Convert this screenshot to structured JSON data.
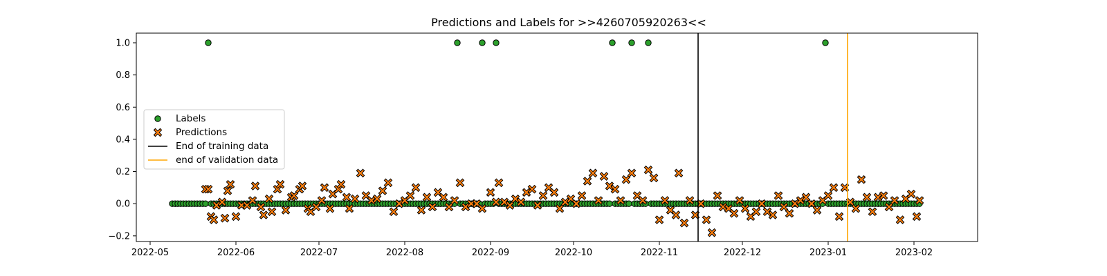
{
  "chart_data": {
    "type": "scatter",
    "title": "Predictions and Labels for >>4260705920263<<",
    "xlabel": "",
    "ylabel": "",
    "x_axis": {
      "type": "date",
      "range": [
        "2022-04-26",
        "2023-02-24"
      ],
      "ticks": [
        "2022-05-01",
        "2022-06-01",
        "2022-07-01",
        "2022-08-01",
        "2022-09-01",
        "2022-10-01",
        "2022-11-01",
        "2022-12-01",
        "2023-01-01",
        "2023-02-01"
      ],
      "tick_labels": [
        "2022-05",
        "2022-06",
        "2022-07",
        "2022-08",
        "2022-09",
        "2022-10",
        "2022-11",
        "2022-12",
        "2023-01",
        "2023-02"
      ]
    },
    "y_axis": {
      "range": [
        -0.235,
        1.06
      ],
      "ticks": [
        -0.2,
        0.0,
        0.2,
        0.4,
        0.6,
        0.8,
        1.0
      ],
      "tick_labels": [
        "−0.2",
        "0.0",
        "0.2",
        "0.4",
        "0.6",
        "0.8",
        "1.0"
      ]
    },
    "grid": false,
    "legend_position": "center-left",
    "labels_series": {
      "name": "Labels",
      "color": "#2ca02c",
      "x_range": [
        "2022-05-09",
        "2023-02-03"
      ],
      "default_value": 0.0,
      "positive_dates": [
        "2022-05-22",
        "2022-08-20",
        "2022-08-29",
        "2022-09-03",
        "2022-10-15",
        "2022-10-22",
        "2022-10-28",
        "2022-12-31"
      ],
      "positive_value": 1.0
    },
    "predictions_series": {
      "name": "Predictions",
      "color": "#ff7f0e",
      "points": [
        [
          "2022-05-21",
          0.09
        ],
        [
          "2022-05-22",
          0.09
        ],
        [
          "2022-05-23",
          -0.08
        ],
        [
          "2022-05-24",
          -0.1
        ],
        [
          "2022-05-25",
          -0.01
        ],
        [
          "2022-05-27",
          0.01
        ],
        [
          "2022-05-28",
          -0.09
        ],
        [
          "2022-05-29",
          0.08
        ],
        [
          "2022-05-30",
          0.12
        ],
        [
          "2022-06-01",
          -0.08
        ],
        [
          "2022-06-03",
          -0.01
        ],
        [
          "2022-06-05",
          -0.01
        ],
        [
          "2022-06-07",
          0.02
        ],
        [
          "2022-06-08",
          0.11
        ],
        [
          "2022-06-10",
          -0.02
        ],
        [
          "2022-06-11",
          -0.07
        ],
        [
          "2022-06-13",
          0.03
        ],
        [
          "2022-06-14",
          -0.05
        ],
        [
          "2022-06-16",
          0.09
        ],
        [
          "2022-06-17",
          0.12
        ],
        [
          "2022-06-19",
          -0.04
        ],
        [
          "2022-06-21",
          0.04
        ],
        [
          "2022-06-22",
          0.05
        ],
        [
          "2022-06-24",
          0.09
        ],
        [
          "2022-06-25",
          0.11
        ],
        [
          "2022-06-27",
          -0.03
        ],
        [
          "2022-06-28",
          -0.05
        ],
        [
          "2022-06-30",
          -0.02
        ],
        [
          "2022-07-02",
          0.02
        ],
        [
          "2022-07-03",
          0.1
        ],
        [
          "2022-07-05",
          -0.03
        ],
        [
          "2022-07-06",
          0.06
        ],
        [
          "2022-07-08",
          0.09
        ],
        [
          "2022-07-09",
          0.12
        ],
        [
          "2022-07-11",
          0.04
        ],
        [
          "2022-07-12",
          -0.03
        ],
        [
          "2022-07-14",
          0.03
        ],
        [
          "2022-07-16",
          0.19
        ],
        [
          "2022-07-18",
          0.05
        ],
        [
          "2022-07-20",
          0.02
        ],
        [
          "2022-07-22",
          0.03
        ],
        [
          "2022-07-24",
          0.08
        ],
        [
          "2022-07-26",
          0.13
        ],
        [
          "2022-07-28",
          -0.05
        ],
        [
          "2022-07-30",
          0.0
        ],
        [
          "2022-08-01",
          0.02
        ],
        [
          "2022-08-03",
          0.05
        ],
        [
          "2022-08-05",
          0.1
        ],
        [
          "2022-08-07",
          -0.04
        ],
        [
          "2022-08-09",
          0.04
        ],
        [
          "2022-08-11",
          -0.02
        ],
        [
          "2022-08-13",
          0.07
        ],
        [
          "2022-08-15",
          0.04
        ],
        [
          "2022-08-17",
          -0.02
        ],
        [
          "2022-08-19",
          0.02
        ],
        [
          "2022-08-21",
          0.13
        ],
        [
          "2022-08-23",
          -0.02
        ],
        [
          "2022-08-25",
          0.0
        ],
        [
          "2022-08-27",
          0.0
        ],
        [
          "2022-08-29",
          -0.03
        ],
        [
          "2022-09-01",
          0.07
        ],
        [
          "2022-09-03",
          0.01
        ],
        [
          "2022-09-04",
          0.13
        ],
        [
          "2022-09-06",
          0.01
        ],
        [
          "2022-09-08",
          -0.01
        ],
        [
          "2022-09-10",
          0.03
        ],
        [
          "2022-09-12",
          0.01
        ],
        [
          "2022-09-14",
          0.07
        ],
        [
          "2022-09-16",
          0.09
        ],
        [
          "2022-09-18",
          -0.01
        ],
        [
          "2022-09-20",
          0.05
        ],
        [
          "2022-09-22",
          0.1
        ],
        [
          "2022-09-24",
          0.07
        ],
        [
          "2022-09-26",
          -0.03
        ],
        [
          "2022-09-28",
          0.01
        ],
        [
          "2022-09-30",
          0.03
        ],
        [
          "2022-10-02",
          0.0
        ],
        [
          "2022-10-04",
          0.05
        ],
        [
          "2022-10-06",
          0.14
        ],
        [
          "2022-10-08",
          0.19
        ],
        [
          "2022-10-10",
          0.02
        ],
        [
          "2022-10-12",
          0.17
        ],
        [
          "2022-10-14",
          0.11
        ],
        [
          "2022-10-16",
          0.09
        ],
        [
          "2022-10-18",
          0.02
        ],
        [
          "2022-10-20",
          0.15
        ],
        [
          "2022-10-22",
          0.19
        ],
        [
          "2022-10-24",
          0.05
        ],
        [
          "2022-10-26",
          0.02
        ],
        [
          "2022-10-28",
          0.21
        ],
        [
          "2022-10-30",
          0.16
        ],
        [
          "2022-11-01",
          -0.1
        ],
        [
          "2022-11-03",
          0.02
        ],
        [
          "2022-11-05",
          -0.04
        ],
        [
          "2022-11-07",
          -0.07
        ],
        [
          "2022-11-08",
          0.19
        ],
        [
          "2022-11-10",
          -0.12
        ],
        [
          "2022-11-12",
          0.02
        ],
        [
          "2022-11-14",
          -0.07
        ],
        [
          "2022-11-16",
          0.0
        ],
        [
          "2022-11-18",
          -0.1
        ],
        [
          "2022-11-20",
          -0.18
        ],
        [
          "2022-11-22",
          0.05
        ],
        [
          "2022-11-24",
          -0.02
        ],
        [
          "2022-11-26",
          -0.03
        ],
        [
          "2022-11-28",
          -0.06
        ],
        [
          "2022-11-30",
          0.02
        ],
        [
          "2022-12-02",
          -0.03
        ],
        [
          "2022-12-04",
          -0.08
        ],
        [
          "2022-12-06",
          -0.05
        ],
        [
          "2022-12-08",
          0.0
        ],
        [
          "2022-12-10",
          -0.05
        ],
        [
          "2022-12-12",
          -0.07
        ],
        [
          "2022-12-14",
          0.05
        ],
        [
          "2022-12-16",
          -0.02
        ],
        [
          "2022-12-18",
          -0.06
        ],
        [
          "2022-12-20",
          0.0
        ],
        [
          "2022-12-22",
          0.02
        ],
        [
          "2022-12-24",
          0.04
        ],
        [
          "2022-12-26",
          0.0
        ],
        [
          "2022-12-28",
          -0.04
        ],
        [
          "2022-12-30",
          0.02
        ],
        [
          "2023-01-01",
          0.05
        ],
        [
          "2023-01-03",
          0.1
        ],
        [
          "2023-01-05",
          -0.08
        ],
        [
          "2023-01-07",
          0.1
        ],
        [
          "2023-01-09",
          0.01
        ],
        [
          "2023-01-11",
          -0.03
        ],
        [
          "2023-01-13",
          0.15
        ],
        [
          "2023-01-15",
          0.04
        ],
        [
          "2023-01-17",
          -0.05
        ],
        [
          "2023-01-19",
          0.04
        ],
        [
          "2023-01-21",
          0.05
        ],
        [
          "2023-01-23",
          -0.02
        ],
        [
          "2023-01-25",
          0.02
        ],
        [
          "2023-01-27",
          -0.1
        ],
        [
          "2023-01-29",
          0.03
        ],
        [
          "2023-01-31",
          0.06
        ],
        [
          "2023-02-02",
          -0.08
        ],
        [
          "2023-02-03",
          0.02
        ]
      ]
    },
    "vertical_lines": [
      {
        "name": "End of training data",
        "x": "2022-11-15",
        "color": "#000000"
      },
      {
        "name": "end of validation data",
        "x": "2023-01-08",
        "color": "#ffa500"
      }
    ],
    "legend": [
      "Labels",
      "Predictions",
      "End of training data",
      "end of validation data"
    ]
  }
}
